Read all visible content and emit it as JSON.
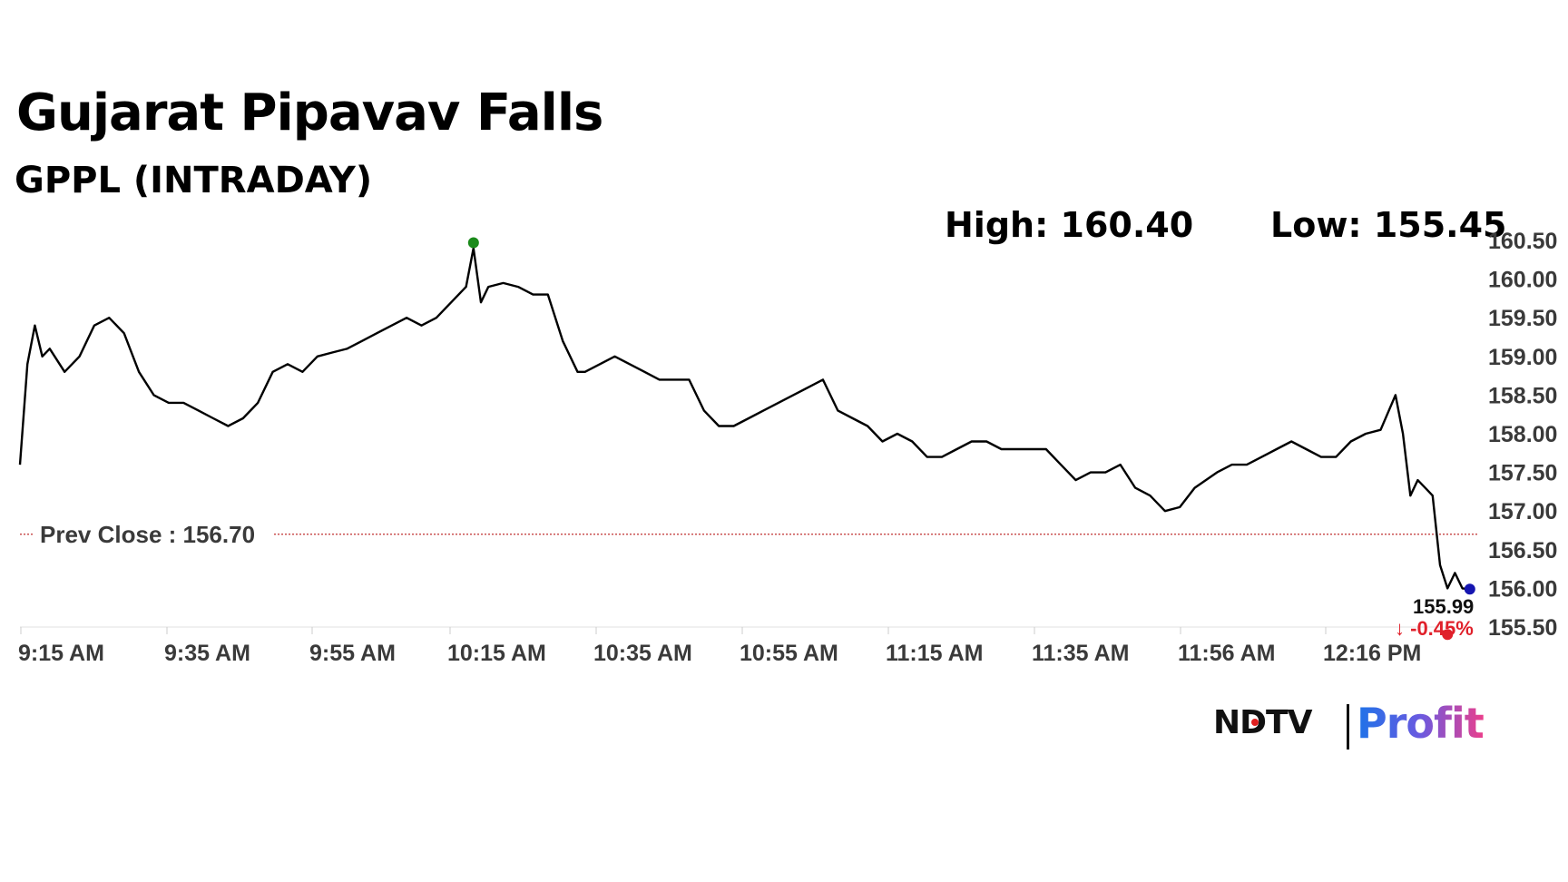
{
  "title": "Gujarat Pipavav Falls",
  "subtitle": "GPPL (INTRADAY)",
  "high_label": "High: 160.40",
  "low_label": "Low: 155.45",
  "prev_close_label": "Prev Close : 156.70",
  "last_price_label": "155.99",
  "change_label": "↓ -0.45%",
  "logo": {
    "left": "NDTV",
    "right": "Profit"
  },
  "colors": {
    "line": "#000000",
    "high_marker": "#1a8a1a",
    "low_marker": "#e0202a",
    "last_marker": "#1515b0",
    "prev_close_line": "#c03030",
    "change_text": "#e0202a",
    "axis_text": "#3a3a3a"
  },
  "chart_data": {
    "type": "line",
    "title": "Gujarat Pipavav Falls",
    "subtitle": "GPPL (INTRADAY)",
    "ylim": [
      155.5,
      160.5
    ],
    "y_ticks": [
      "160.50",
      "160.00",
      "159.50",
      "159.00",
      "158.50",
      "158.00",
      "157.50",
      "157.00",
      "156.50",
      "156.00",
      "155.50"
    ],
    "x_ticks": [
      "9:15 AM",
      "9:35 AM",
      "9:55 AM",
      "10:15 AM",
      "10:35 AM",
      "10:55 AM",
      "11:15 AM",
      "11:35 AM",
      "11:56 AM",
      "12:16 PM"
    ],
    "x": [
      "9:15",
      "9:16",
      "9:17",
      "9:18",
      "9:19",
      "9:21",
      "9:23",
      "9:25",
      "9:27",
      "9:29",
      "9:31",
      "9:33",
      "9:35",
      "9:37",
      "9:39",
      "9:41",
      "9:43",
      "9:45",
      "9:47",
      "9:49",
      "9:51",
      "9:53",
      "9:55",
      "9:57",
      "9:59",
      "10:01",
      "10:03",
      "10:05",
      "10:07",
      "10:09",
      "10:11",
      "10:13",
      "10:15",
      "10:16",
      "10:17",
      "10:18",
      "10:20",
      "10:22",
      "10:24",
      "10:26",
      "10:28",
      "10:30",
      "10:31",
      "10:33",
      "10:35",
      "10:37",
      "10:39",
      "10:41",
      "10:43",
      "10:45",
      "10:47",
      "10:49",
      "10:51",
      "10:53",
      "10:55",
      "10:57",
      "10:59",
      "11:01",
      "11:03",
      "11:05",
      "11:07",
      "11:09",
      "11:11",
      "11:13",
      "11:15",
      "11:17",
      "11:19",
      "11:21",
      "11:23",
      "11:25",
      "11:27",
      "11:29",
      "11:31",
      "11:33",
      "11:35",
      "11:37",
      "11:39",
      "11:41",
      "11:43",
      "11:45",
      "11:47",
      "11:49",
      "11:51",
      "11:53",
      "11:56",
      "11:58",
      "12:00",
      "12:02",
      "12:04",
      "12:06",
      "12:08",
      "12:10",
      "12:12",
      "12:14",
      "12:16",
      "12:18",
      "12:20",
      "12:21",
      "12:22",
      "12:23",
      "12:24",
      "12:25",
      "12:26",
      "12:27",
      "12:28",
      "12:29",
      "12:30"
    ],
    "series": [
      {
        "values": [
          157.6,
          158.9,
          159.4,
          159.0,
          159.1,
          158.8,
          159.0,
          159.4,
          159.5,
          159.3,
          158.8,
          158.5,
          158.4,
          158.4,
          158.3,
          158.2,
          158.1,
          158.2,
          158.4,
          158.8,
          158.9,
          158.8,
          159.0,
          159.05,
          159.1,
          159.2,
          159.3,
          159.4,
          159.5,
          159.4,
          159.5,
          159.7,
          159.9,
          160.4,
          159.7,
          159.9,
          159.95,
          159.9,
          159.8,
          159.8,
          159.2,
          158.8,
          158.8,
          158.9,
          159.0,
          158.9,
          158.8,
          158.7,
          158.7,
          158.7,
          158.3,
          158.1,
          158.1,
          158.2,
          158.3,
          158.4,
          158.5,
          158.6,
          158.7,
          158.3,
          158.2,
          158.1,
          157.9,
          158.0,
          157.9,
          157.7,
          157.7,
          157.8,
          157.9,
          157.9,
          157.8,
          157.8,
          157.8,
          157.8,
          157.6,
          157.4,
          157.5,
          157.5,
          157.6,
          157.3,
          157.2,
          157.0,
          157.05,
          157.3,
          157.5,
          157.6,
          157.6,
          157.7,
          157.8,
          157.9,
          157.8,
          157.7,
          157.7,
          157.9,
          158.0,
          158.05,
          158.5,
          158.0,
          157.2,
          157.4,
          157.3,
          157.2,
          156.3,
          156.0,
          156.2,
          156.0,
          155.99
        ]
      }
    ],
    "prev_close": 156.7,
    "high": {
      "time": "10:16",
      "value": 160.4
    },
    "low": {
      "time": "12:27",
      "value": 155.45
    },
    "last": {
      "time": "12:30",
      "value": 155.99
    },
    "grid": false
  }
}
